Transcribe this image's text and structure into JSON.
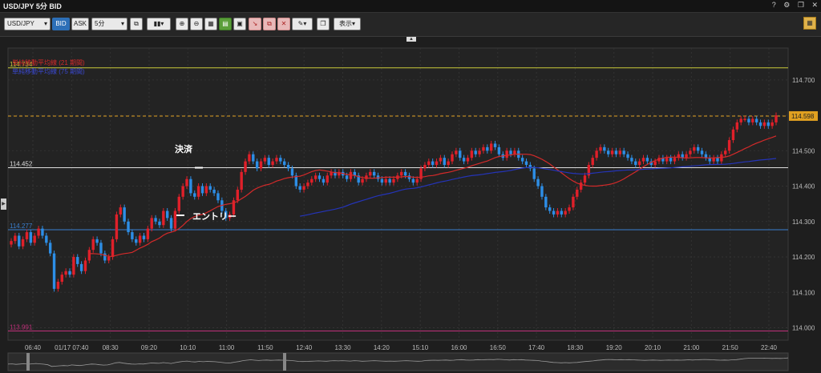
{
  "window": {
    "title": "USD/JPY 5分 BID",
    "controls": [
      "?",
      "⚙",
      "❐",
      "✕"
    ]
  },
  "toolbar": {
    "symbol": "USD/JPY",
    "bid_label": "BID",
    "ask_label": "ASK",
    "interval": "5分",
    "display_label": "表示",
    "pen_icon": "pencil-icon"
  },
  "indicators": {
    "sma21": {
      "label": "単純移動平均線 (21 期間)",
      "color": "#d42a2a"
    },
    "sma75": {
      "label": "単純移動平均線 (75 期間)",
      "color": "#2434b8"
    }
  },
  "annotations": {
    "exit": "決済",
    "entry": "エントリー"
  },
  "chart_data": {
    "type": "candlestick",
    "instrument": "USD/JPY",
    "ylim": [
      113.965,
      114.79
    ],
    "y_ticks": [
      114.0,
      114.1,
      114.2,
      114.3,
      114.4,
      114.5,
      114.6,
      114.7
    ],
    "x_ticks": [
      "06:40",
      "01/17 07:40",
      "08:30",
      "09:20",
      "10:10",
      "11:00",
      "11:50",
      "12:40",
      "13:30",
      "14:20",
      "15:10",
      "16:00",
      "16:50",
      "17:40",
      "18:30",
      "19:20",
      "20:10",
      "21:00",
      "21:50",
      "22:40"
    ],
    "current_price": "114.598",
    "horizontal_lines": [
      {
        "value": 114.734,
        "label": "114.734",
        "color": "#c9c93a",
        "style": "solid"
      },
      {
        "value": 114.598,
        "label": "114.598",
        "color": "#e0a020",
        "style": "dashed"
      },
      {
        "value": 114.452,
        "label": "114.452",
        "color": "#dddddd",
        "style": "solid"
      },
      {
        "value": 114.277,
        "label": "114.277",
        "color": "#3a7fd0",
        "style": "solid"
      },
      {
        "value": 113.991,
        "label": "113.991",
        "color": "#c0307a",
        "style": "solid"
      }
    ],
    "candles": [
      114.245,
      114.26,
      114.23,
      114.25,
      114.27,
      114.24,
      114.26,
      114.28,
      114.26,
      114.24,
      114.21,
      114.11,
      114.13,
      114.15,
      114.16,
      114.15,
      114.2,
      114.18,
      114.16,
      114.19,
      114.22,
      114.25,
      114.24,
      114.21,
      114.19,
      114.2,
      114.25,
      114.32,
      114.34,
      114.3,
      114.27,
      114.25,
      114.24,
      114.26,
      114.25,
      114.28,
      114.31,
      114.3,
      114.29,
      114.33,
      114.31,
      114.28,
      114.33,
      114.37,
      114.4,
      114.42,
      114.38,
      114.37,
      114.4,
      114.38,
      114.4,
      114.39,
      114.38,
      114.36,
      114.33,
      114.31,
      114.32,
      114.36,
      114.39,
      114.44,
      114.47,
      114.49,
      114.47,
      114.45,
      114.47,
      114.48,
      114.46,
      114.47,
      114.48,
      114.47,
      114.46,
      114.45,
      114.43,
      114.4,
      114.39,
      114.4,
      114.41,
      114.42,
      114.43,
      114.42,
      114.41,
      114.43,
      114.44,
      114.43,
      114.44,
      114.43,
      114.42,
      114.44,
      114.43,
      114.41,
      114.42,
      114.43,
      114.44,
      114.43,
      114.42,
      114.41,
      114.42,
      114.41,
      114.42,
      114.43,
      114.44,
      114.43,
      114.42,
      114.41,
      114.42,
      114.45,
      114.46,
      114.47,
      114.46,
      114.47,
      114.48,
      114.46,
      114.47,
      114.49,
      114.5,
      114.48,
      114.47,
      114.48,
      114.5,
      114.49,
      114.5,
      114.51,
      114.5,
      114.52,
      114.51,
      114.49,
      114.48,
      114.5,
      114.49,
      114.5,
      114.48,
      114.47,
      114.46,
      114.45,
      114.42,
      114.4,
      114.37,
      114.34,
      114.33,
      114.32,
      114.33,
      114.32,
      114.33,
      114.34,
      114.37,
      114.39,
      114.41,
      114.43,
      114.46,
      114.48,
      114.5,
      114.51,
      114.5,
      114.49,
      114.5,
      114.49,
      114.5,
      114.49,
      114.48,
      114.47,
      114.46,
      114.47,
      114.48,
      114.47,
      114.46,
      114.47,
      114.48,
      114.47,
      114.48,
      114.47,
      114.48,
      114.49,
      114.48,
      114.49,
      114.5,
      114.51,
      114.5,
      114.49,
      114.48,
      114.47,
      114.48,
      114.47,
      114.49,
      114.5,
      114.53,
      114.56,
      114.58,
      114.59,
      114.59,
      114.58,
      114.59,
      114.58,
      114.57,
      114.58,
      114.57,
      114.58,
      114.6
    ]
  }
}
